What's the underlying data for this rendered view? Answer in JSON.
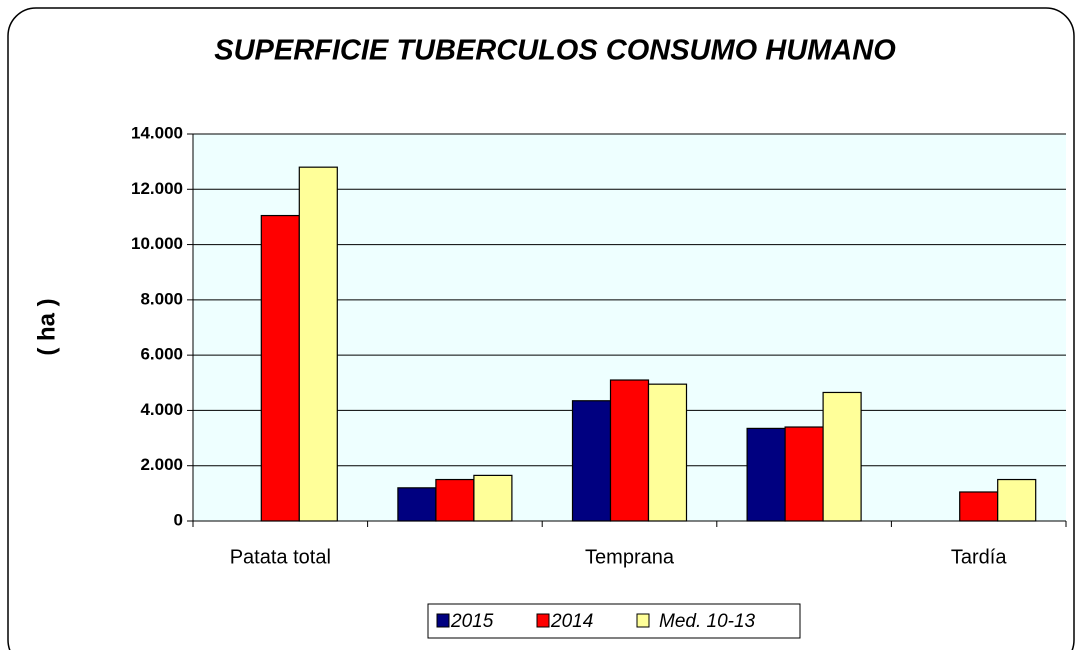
{
  "chart_data": {
    "type": "bar",
    "title": "SUPERFICIE TUBERCULOS CONSUMO HUMANO",
    "y_label": "( ha )",
    "categories": [
      "Patata total",
      null,
      "Temprana",
      null,
      "Tardía"
    ],
    "series": [
      {
        "name": "2015",
        "color": "#000080",
        "values": [
          null,
          1200,
          4350,
          3350,
          null
        ]
      },
      {
        "name": "2014",
        "color": "#ff0000",
        "values": [
          11050,
          1500,
          5100,
          3400,
          1050
        ]
      },
      {
        "name": "Med. 10-13",
        "color": "#ffff99",
        "values": [
          12800,
          1650,
          4950,
          4650,
          1500
        ]
      }
    ],
    "ylim": [
      0,
      14000
    ],
    "yticks": [
      0,
      {
        "value": 2000,
        "label": "2.000"
      },
      {
        "value": 4000,
        "label": "4.000"
      },
      {
        "value": 6000,
        "label": "6.000"
      },
      {
        "value": 8000,
        "label": "8.000"
      },
      {
        "value": 10000,
        "label": "10.000"
      },
      {
        "value": 12000,
        "label": "12.000"
      },
      {
        "value": 14000,
        "label": "14.000"
      }
    ],
    "grid": true,
    "legend": "bottom"
  }
}
